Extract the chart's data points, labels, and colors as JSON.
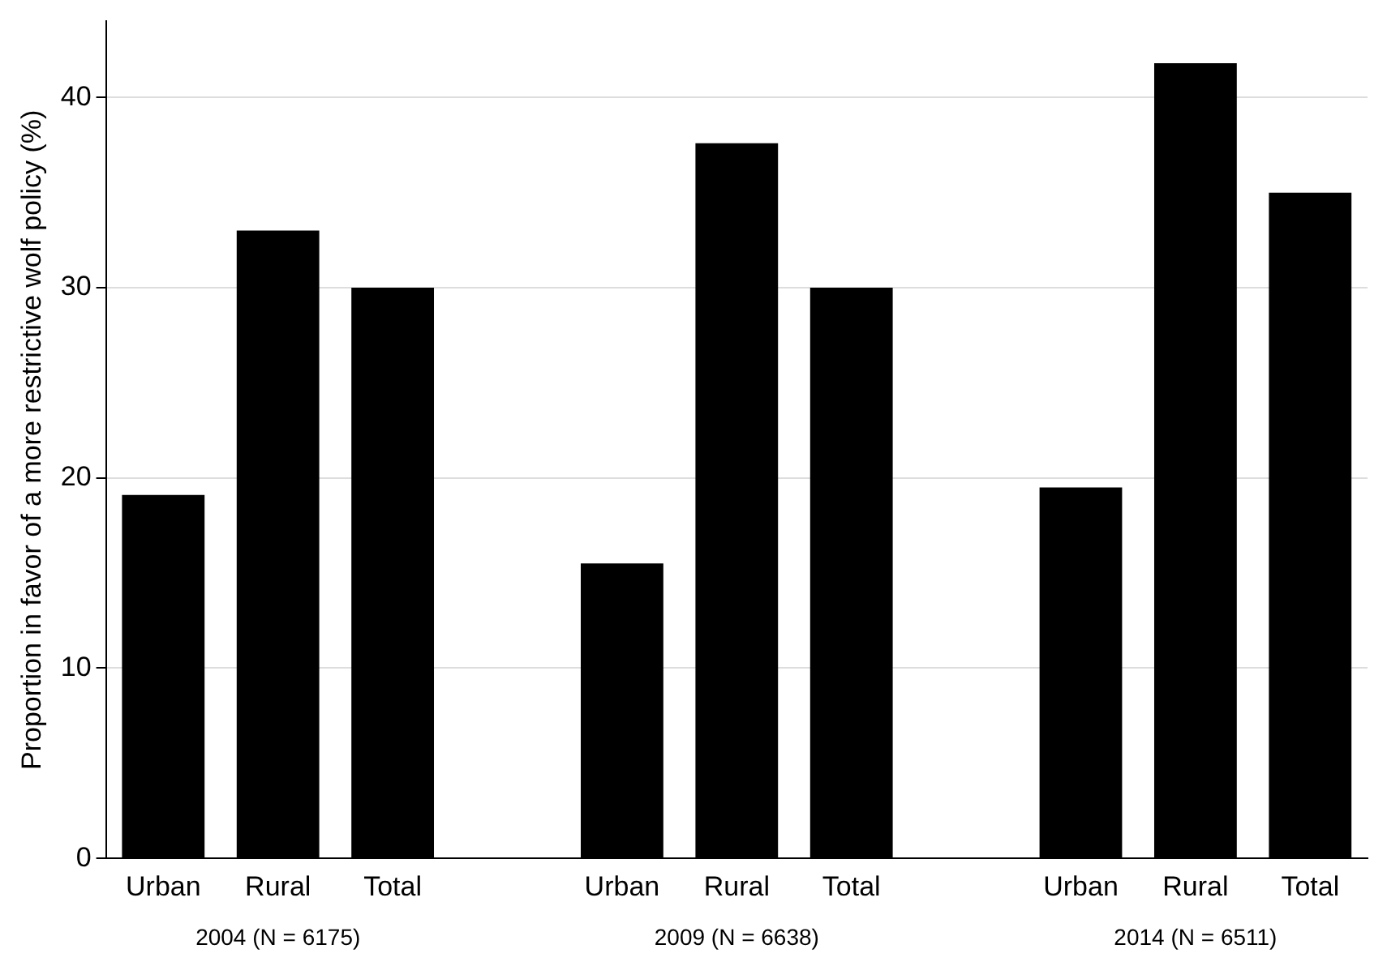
{
  "chart_data": {
    "type": "bar",
    "ylabel": "Proportion in favor of a more restrictive wolf policy (%)",
    "categories": [
      "Urban",
      "Rural",
      "Total",
      null,
      "Urban",
      "Rural",
      "Total",
      null,
      "Urban",
      "Rural",
      "Total"
    ],
    "values": [
      19.1,
      33.0,
      30.0,
      null,
      15.5,
      37.6,
      30.0,
      null,
      19.5,
      41.8,
      35.0
    ],
    "color": "#000000",
    "ylim": [
      0,
      44
    ],
    "yticks": [
      0,
      10,
      20,
      30,
      40
    ],
    "grid": "y",
    "legend": false,
    "annotations": [
      "2004 (N = 6175)",
      "2009 (N = 6638)",
      "2014 (N = 6511)"
    ]
  }
}
